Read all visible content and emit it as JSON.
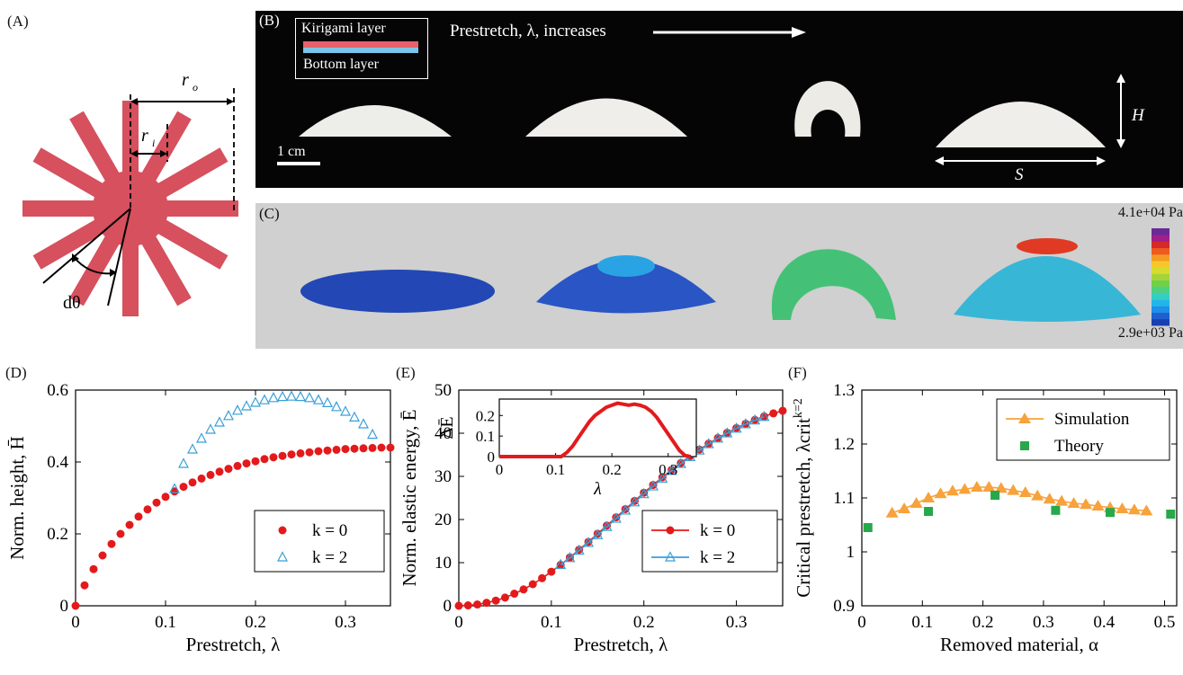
{
  "panel_labels": {
    "a": "(A)",
    "b": "(B)",
    "c": "(C)",
    "d": "(D)",
    "e": "(E)",
    "f": "(F)"
  },
  "panel_a": {
    "r_o": "r",
    "r_o_sub": "o",
    "r_i": "r",
    "r_i_sub": "i",
    "dtheta": "dθ",
    "fill_color": "#d6505e"
  },
  "panel_b": {
    "legend_top": "Kirigami layer",
    "legend_bottom": "Bottom layer",
    "legend_top_color": "#e8606c",
    "legend_bottom_color": "#7cc4ea",
    "arrow_text": "Prestretch, λ, increases",
    "scale_bar": "1 cm",
    "height_label": "H",
    "span_label": "S"
  },
  "panel_c": {
    "colorbar_max": "4.1e+04 Pa",
    "colorbar_min": "2.9e+03 Pa",
    "colorbar_colors": [
      "#1a3fb0",
      "#1f5fd0",
      "#1f8fe8",
      "#22b6e8",
      "#34cfc4",
      "#4fd080",
      "#6fd04a",
      "#a5d43a",
      "#d8da30",
      "#f5c82a",
      "#f59a24",
      "#ef5a20",
      "#d62a2a",
      "#a0208a",
      "#6a2a96"
    ]
  },
  "chart_data": [
    {
      "type": "scatter",
      "xlabel": "Prestretch, λ",
      "ylabel": "Norm. height, H̄",
      "xlim": [
        0,
        0.35
      ],
      "ylim": [
        0,
        0.6
      ],
      "xticks": [
        "0",
        "0.1",
        "0.2",
        "0.3"
      ],
      "yticks": [
        "0",
        "0.2",
        "0.4",
        "0.6"
      ],
      "legend_position": "bottom-right",
      "series": [
        {
          "name": "k = 0",
          "marker": "filled-circle",
          "color": "#e31a1c",
          "x": [
            0,
            0.01,
            0.02,
            0.03,
            0.04,
            0.05,
            0.06,
            0.07,
            0.08,
            0.09,
            0.1,
            0.11,
            0.12,
            0.13,
            0.14,
            0.15,
            0.16,
            0.17,
            0.18,
            0.19,
            0.2,
            0.21,
            0.22,
            0.23,
            0.24,
            0.25,
            0.26,
            0.27,
            0.28,
            0.29,
            0.3,
            0.31,
            0.32,
            0.33,
            0.34,
            0.35
          ],
          "y": [
            0,
            0.057,
            0.102,
            0.14,
            0.172,
            0.2,
            0.225,
            0.248,
            0.268,
            0.287,
            0.303,
            0.318,
            0.331,
            0.343,
            0.354,
            0.364,
            0.373,
            0.381,
            0.389,
            0.396,
            0.402,
            0.408,
            0.413,
            0.417,
            0.421,
            0.424,
            0.427,
            0.43,
            0.432,
            0.434,
            0.436,
            0.437,
            0.438,
            0.439,
            0.44,
            0.44
          ]
        },
        {
          "name": "k = 2",
          "marker": "open-triangle",
          "color": "#3a9fd6",
          "x": [
            0.11,
            0.12,
            0.13,
            0.14,
            0.15,
            0.16,
            0.17,
            0.18,
            0.19,
            0.2,
            0.21,
            0.22,
            0.23,
            0.24,
            0.25,
            0.26,
            0.27,
            0.28,
            0.29,
            0.3,
            0.31,
            0.32,
            0.33
          ],
          "y": [
            0.325,
            0.395,
            0.435,
            0.465,
            0.49,
            0.51,
            0.528,
            0.543,
            0.555,
            0.565,
            0.572,
            0.578,
            0.581,
            0.582,
            0.581,
            0.578,
            0.572,
            0.564,
            0.553,
            0.54,
            0.524,
            0.505,
            0.476
          ]
        }
      ]
    },
    {
      "type": "line",
      "xlabel": "Prestretch, λ",
      "ylabel": "Norm. elastic energy, Ē",
      "xlim": [
        0,
        0.35
      ],
      "ylim": [
        0,
        50
      ],
      "xticks": [
        "0",
        "0.1",
        "0.2",
        "0.3"
      ],
      "yticks": [
        "0",
        "10",
        "20",
        "30",
        "40",
        "50"
      ],
      "legend_position": "bottom-right",
      "series": [
        {
          "name": "k = 0",
          "marker": "filled-circle",
          "color": "#e31a1c",
          "x": [
            0,
            0.01,
            0.02,
            0.03,
            0.04,
            0.05,
            0.06,
            0.07,
            0.08,
            0.09,
            0.1,
            0.11,
            0.12,
            0.13,
            0.14,
            0.15,
            0.16,
            0.17,
            0.18,
            0.19,
            0.2,
            0.21,
            0.22,
            0.23,
            0.24,
            0.25,
            0.26,
            0.27,
            0.28,
            0.29,
            0.3,
            0.31,
            0.32,
            0.33,
            0.34,
            0.35
          ],
          "y": [
            0,
            0.1,
            0.3,
            0.7,
            1.2,
            1.9,
            2.8,
            3.8,
            5.0,
            6.4,
            7.9,
            9.5,
            11.2,
            13.0,
            14.8,
            16.7,
            18.6,
            20.5,
            22.4,
            24.3,
            26.2,
            28.0,
            29.8,
            31.5,
            33.1,
            34.7,
            36.2,
            37.6,
            38.9,
            40.1,
            41.2,
            42.2,
            43.1,
            43.9,
            44.6,
            45.2
          ]
        },
        {
          "name": "k = 2",
          "marker": "open-triangle",
          "color": "#3a9fd6",
          "x": [
            0.11,
            0.12,
            0.13,
            0.14,
            0.15,
            0.16,
            0.17,
            0.18,
            0.19,
            0.2,
            0.21,
            0.22,
            0.23,
            0.24,
            0.25,
            0.26,
            0.27,
            0.28,
            0.29,
            0.3,
            0.31,
            0.32,
            0.33
          ],
          "y": [
            9.5,
            11.1,
            12.8,
            14.6,
            16.4,
            18.3,
            20.2,
            22.1,
            24.0,
            25.9,
            27.7,
            29.5,
            31.3,
            32.9,
            34.5,
            36.0,
            37.5,
            38.8,
            40.0,
            41.1,
            42.1,
            43.0,
            43.8
          ]
        }
      ],
      "inset": {
        "type": "line",
        "xlabel": "λ",
        "ylabel": "ΔĒ",
        "xlim": [
          0,
          0.35
        ],
        "ylim": [
          0,
          0.28
        ],
        "xticks": [
          "0",
          "0.1",
          "0.2",
          "0.3"
        ],
        "yticks": [
          "0",
          "0.1",
          "0.2"
        ],
        "color": "#e31a1c",
        "x": [
          0,
          0.02,
          0.04,
          0.06,
          0.08,
          0.1,
          0.11,
          0.12,
          0.13,
          0.14,
          0.15,
          0.16,
          0.17,
          0.18,
          0.19,
          0.2,
          0.21,
          0.22,
          0.23,
          0.24,
          0.25,
          0.26,
          0.27,
          0.28,
          0.29,
          0.3,
          0.31,
          0.32,
          0.33,
          0.34
        ],
        "y": [
          0,
          0,
          0,
          0,
          0,
          0,
          0,
          0.02,
          0.05,
          0.09,
          0.13,
          0.17,
          0.2,
          0.22,
          0.24,
          0.25,
          0.26,
          0.255,
          0.25,
          0.255,
          0.25,
          0.24,
          0.22,
          0.19,
          0.15,
          0.11,
          0.07,
          0.03,
          0.005,
          0
        ]
      }
    },
    {
      "type": "scatter",
      "xlabel": "Removed material, α",
      "ylabel": "Critical prestretch, λcrit",
      "ylabel_super": "k=2",
      "xlim": [
        0,
        0.52
      ],
      "ylim": [
        0.9,
        1.3
      ],
      "xticks": [
        "0",
        "0.1",
        "0.2",
        "0.3",
        "0.4",
        "0.5"
      ],
      "yticks": [
        "0.9",
        "1",
        "1.1",
        "1.2",
        "1.3"
      ],
      "legend_position": "top-right",
      "series": [
        {
          "name": "Simulation",
          "marker": "filled-triangle-line",
          "color": "#f7a23b",
          "x": [
            0.05,
            0.07,
            0.09,
            0.11,
            0.13,
            0.15,
            0.17,
            0.19,
            0.21,
            0.23,
            0.25,
            0.27,
            0.29,
            0.31,
            0.33,
            0.35,
            0.37,
            0.39,
            0.41,
            0.43,
            0.45,
            0.47
          ],
          "y": [
            1.072,
            1.08,
            1.09,
            1.1,
            1.108,
            1.113,
            1.116,
            1.12,
            1.12,
            1.118,
            1.114,
            1.11,
            1.104,
            1.098,
            1.094,
            1.09,
            1.088,
            1.085,
            1.082,
            1.08,
            1.078,
            1.076
          ]
        },
        {
          "name": "Theory",
          "marker": "filled-square",
          "color": "#27a84a",
          "x": [
            0.01,
            0.11,
            0.22,
            0.32,
            0.41,
            0.51
          ],
          "y": [
            1.045,
            1.075,
            1.105,
            1.077,
            1.073,
            1.07
          ]
        }
      ]
    }
  ]
}
